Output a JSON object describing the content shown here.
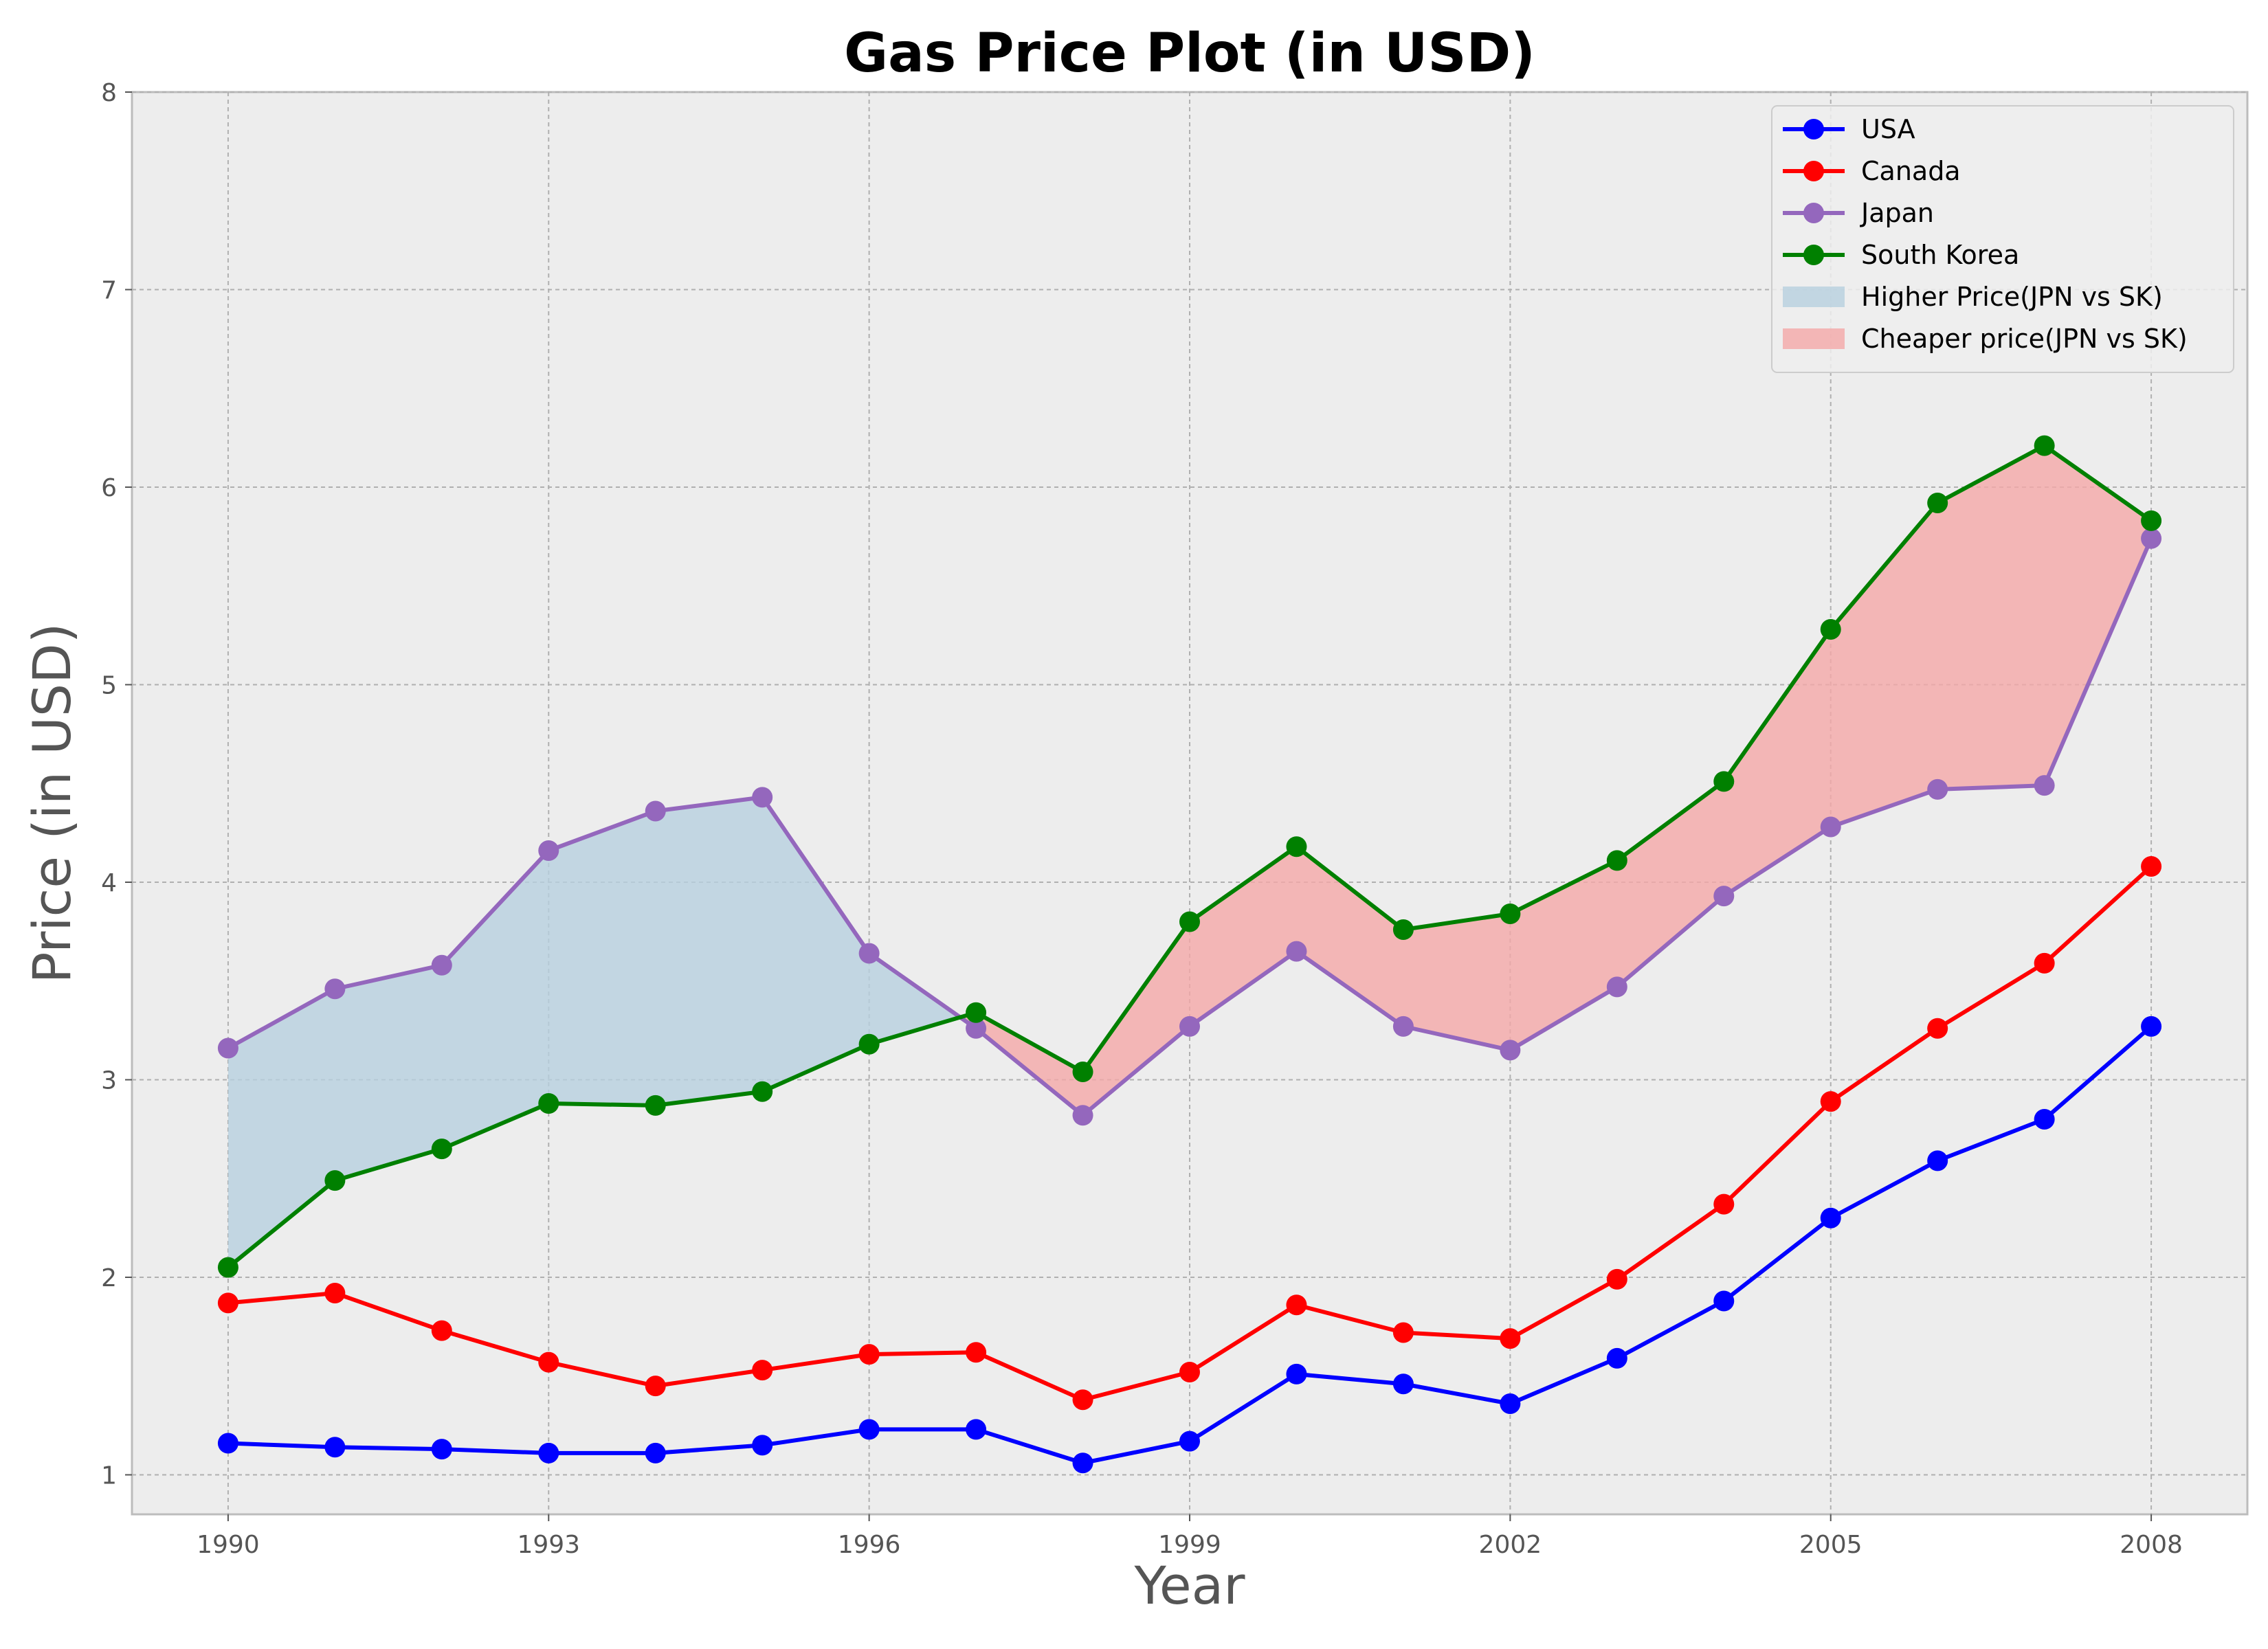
{
  "chart_data": {
    "type": "line",
    "title": "Gas Price Plot (in USD)",
    "xlabel": "Year",
    "ylabel": "Price (in USD)",
    "xlim": [
      1989.1,
      2008.9
    ],
    "ylim": [
      0.8,
      8
    ],
    "x_ticks": [
      "1990",
      "1993",
      "1996",
      "1999",
      "2002",
      "2005",
      "2008"
    ],
    "y_ticks": [
      "1",
      "2",
      "3",
      "4",
      "5",
      "6",
      "7",
      "8"
    ],
    "grid": true,
    "legend_position": "top-right",
    "x": [
      1990,
      1991,
      1992,
      1993,
      1994,
      1995,
      1996,
      1997,
      1998,
      1999,
      2000,
      2001,
      2002,
      2003,
      2004,
      2005,
      2006,
      2007,
      2008
    ],
    "series": [
      {
        "name": "USA",
        "color": "#0000ff",
        "values": [
          1.16,
          1.14,
          1.13,
          1.11,
          1.11,
          1.15,
          1.23,
          1.23,
          1.06,
          1.17,
          1.51,
          1.46,
          1.36,
          1.59,
          1.88,
          2.3,
          2.59,
          2.8,
          3.27
        ]
      },
      {
        "name": "Canada",
        "color": "#ff0000",
        "values": [
          1.87,
          1.92,
          1.73,
          1.57,
          1.45,
          1.53,
          1.61,
          1.62,
          1.38,
          1.52,
          1.86,
          1.72,
          1.69,
          1.99,
          2.37,
          2.89,
          3.26,
          3.59,
          4.08
        ]
      },
      {
        "name": "Japan",
        "color": "#9467bd",
        "values": [
          3.16,
          3.46,
          3.58,
          4.16,
          4.36,
          4.43,
          3.64,
          3.26,
          2.82,
          3.27,
          3.65,
          3.27,
          3.15,
          3.47,
          3.93,
          4.28,
          4.47,
          4.49,
          5.74
        ]
      },
      {
        "name": "South Korea",
        "color": "#008000",
        "values": [
          2.05,
          2.49,
          2.65,
          2.88,
          2.87,
          2.94,
          3.18,
          3.34,
          3.04,
          3.8,
          4.18,
          3.76,
          3.84,
          4.11,
          4.51,
          5.28,
          5.92,
          6.21,
          5.83
        ]
      }
    ],
    "fills": [
      {
        "name": "Higher Price(JPN vs SK)",
        "color": "#b7d0df",
        "opacity": 0.8,
        "condition": "Japan >= South Korea"
      },
      {
        "name": "Cheaper price(JPN vs SK)",
        "color": "#f4a7a7",
        "opacity": 0.8,
        "condition": "Japan < South Korea"
      }
    ]
  }
}
